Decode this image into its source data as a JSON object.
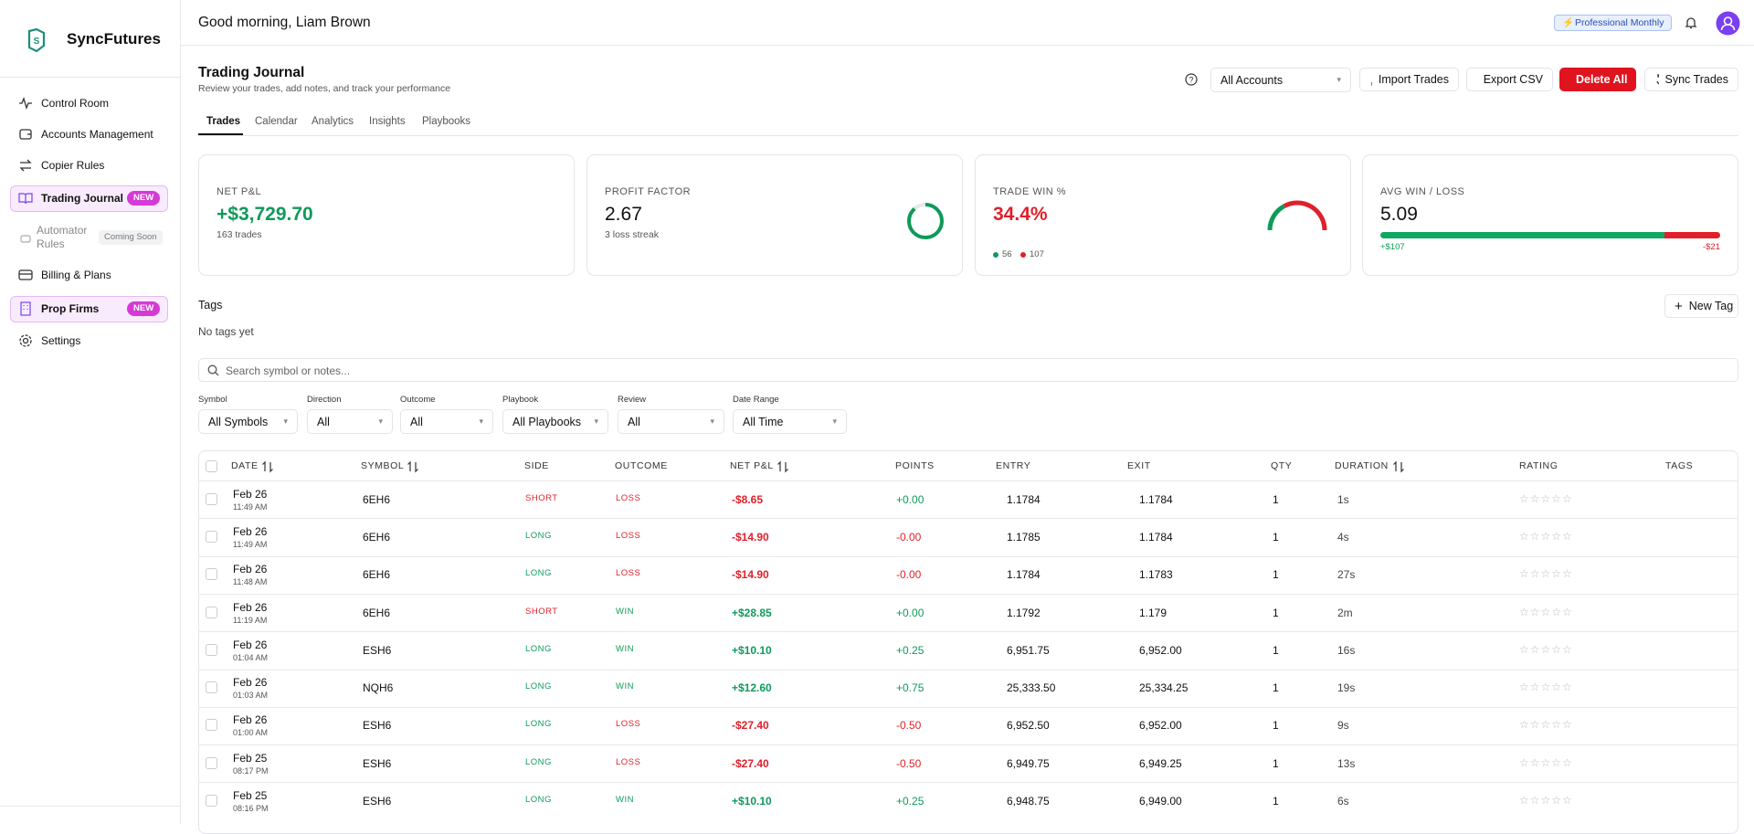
{
  "sidebar": {
    "brand": "SyncFutures",
    "nav": [
      {
        "label": "Control Room"
      },
      {
        "label": "Accounts Management"
      },
      {
        "label": "Copier Rules"
      },
      {
        "label": "Trading Journal",
        "badge": "NEW"
      },
      {
        "label": "Automator Rules",
        "badge": "Coming Soon"
      },
      {
        "label": "Billing & Plans"
      },
      {
        "label": "Prop Firms",
        "badge": "NEW"
      },
      {
        "label": "Settings"
      }
    ]
  },
  "header": {
    "greeting": "Good morning, Liam Brown",
    "plan": "Professional Monthly"
  },
  "page": {
    "title": "Trading Journal",
    "subtitle": "Review your trades, add notes, and track your performance",
    "account_select": "All Accounts",
    "buttons": [
      "Import Trades",
      "Export CSV",
      "Delete All",
      "Sync Trades"
    ],
    "tabs": [
      "Trades",
      "Calendar",
      "Analytics",
      "Insights",
      "Playbooks"
    ]
  },
  "stats": [
    {
      "label": "NET P&L",
      "value": "+$3,729.70",
      "sub": "163 trades"
    },
    {
      "label": "PROFIT FACTOR",
      "value": "2.67",
      "sub": "3 loss streak"
    },
    {
      "label": "TRADE WIN %",
      "value": "34.4%",
      "wins": "56",
      "losses": "107"
    },
    {
      "label": "AVG WIN / LOSS",
      "value": "5.09",
      "avg_win": "+$107",
      "avg_loss": "-$21"
    }
  ],
  "tags": {
    "title": "Tags",
    "empty": "No tags yet",
    "new_button": "New Tag"
  },
  "search_placeholder": "Search symbol or notes...",
  "filters": [
    {
      "label": "Symbol",
      "value": "All Symbols"
    },
    {
      "label": "Direction",
      "value": "All"
    },
    {
      "label": "Outcome",
      "value": "All"
    },
    {
      "label": "Playbook",
      "value": "All Playbooks"
    },
    {
      "label": "Review",
      "value": "All"
    },
    {
      "label": "Date Range",
      "value": "All Time"
    }
  ],
  "table": {
    "columns": [
      "DATE",
      "SYMBOL",
      "SIDE",
      "OUTCOME",
      "NET P&L",
      "POINTS",
      "ENTRY",
      "EXIT",
      "QTY",
      "DURATION",
      "RATING",
      "TAGS"
    ],
    "rows": [
      [
        "Feb 26",
        "11:49 AM",
        "6EH6",
        "SHORT",
        "LOSS",
        "-$8.65",
        "+0.00",
        "1.1784",
        "1.1784",
        "1",
        "1s"
      ],
      [
        "Feb 26",
        "11:49 AM",
        "6EH6",
        "LONG",
        "LOSS",
        "-$14.90",
        "-0.00",
        "1.1785",
        "1.1784",
        "1",
        "4s"
      ],
      [
        "Feb 26",
        "11:48 AM",
        "6EH6",
        "LONG",
        "LOSS",
        "-$14.90",
        "-0.00",
        "1.1784",
        "1.1783",
        "1",
        "27s"
      ],
      [
        "Feb 26",
        "11:19 AM",
        "6EH6",
        "SHORT",
        "WIN",
        "+$28.85",
        "+0.00",
        "1.1792",
        "1.179",
        "1",
        "2m"
      ],
      [
        "Feb 26",
        "01:04 AM",
        "ESH6",
        "LONG",
        "WIN",
        "+$10.10",
        "+0.25",
        "6,951.75",
        "6,952.00",
        "1",
        "16s"
      ],
      [
        "Feb 26",
        "01:03 AM",
        "NQH6",
        "LONG",
        "WIN",
        "+$12.60",
        "+0.75",
        "25,333.50",
        "25,334.25",
        "1",
        "19s"
      ],
      [
        "Feb 26",
        "01:00 AM",
        "ESH6",
        "LONG",
        "LOSS",
        "-$27.40",
        "-0.50",
        "6,952.50",
        "6,952.00",
        "1",
        "9s"
      ],
      [
        "Feb 25",
        "08:17 PM",
        "ESH6",
        "LONG",
        "LOSS",
        "-$27.40",
        "-0.50",
        "6,949.75",
        "6,949.25",
        "1",
        "13s"
      ],
      [
        "Feb 25",
        "08:16 PM",
        "ESH6",
        "LONG",
        "WIN",
        "+$10.10",
        "+0.25",
        "6,948.75",
        "6,949.00",
        "1",
        "6s"
      ]
    ]
  }
}
